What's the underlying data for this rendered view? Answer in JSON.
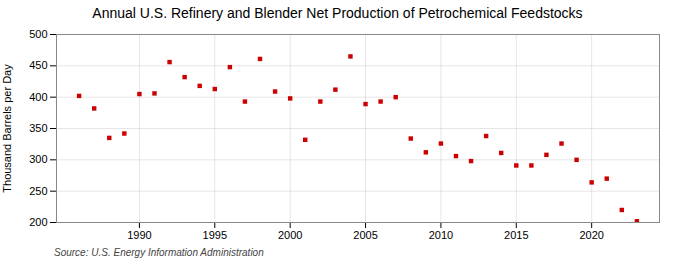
{
  "chart_data": {
    "type": "scatter",
    "title": "Annual U.S. Refinery and Blender Net Production of Petrochemical Feedstocks",
    "ylabel": "Thousand Barrels per Day",
    "source": "Source: U.S. Energy Information Administration",
    "x": [
      1986,
      1987,
      1988,
      1989,
      1990,
      1991,
      1992,
      1993,
      1994,
      1995,
      1996,
      1997,
      1998,
      1999,
      2000,
      2001,
      2002,
      2003,
      2004,
      2005,
      2006,
      2007,
      2008,
      2009,
      2010,
      2011,
      2012,
      2013,
      2014,
      2015,
      2016,
      2017,
      2018,
      2019,
      2020,
      2021,
      2022,
      2023
    ],
    "values": [
      402,
      382,
      335,
      342,
      405,
      406,
      456,
      432,
      418,
      413,
      448,
      393,
      461,
      409,
      398,
      332,
      393,
      412,
      465,
      389,
      393,
      400,
      334,
      312,
      326,
      306,
      298,
      338,
      311,
      291,
      291,
      308,
      326,
      300,
      264,
      270,
      220,
      202
    ],
    "color": "#cc0000",
    "marker": "square",
    "xlim": [
      1984.5,
      2024.5
    ],
    "xticks": [
      1990,
      1995,
      2000,
      2005,
      2010,
      2015,
      2020
    ],
    "ylim": [
      200,
      500
    ],
    "yticks": [
      200,
      250,
      300,
      350,
      400,
      450,
      500
    ],
    "grid": true
  }
}
